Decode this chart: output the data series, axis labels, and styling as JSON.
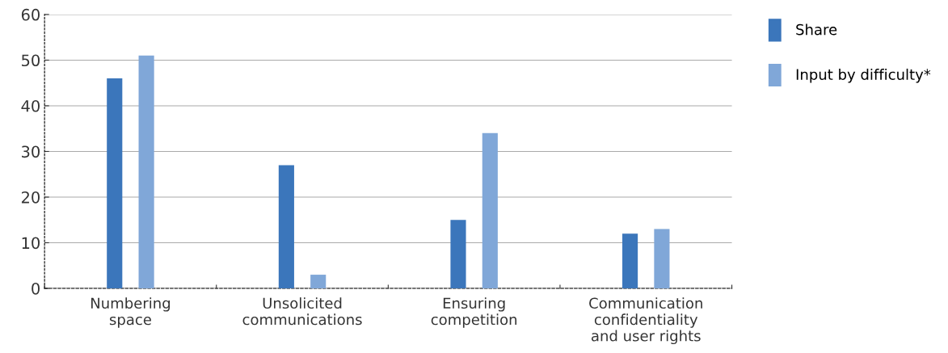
{
  "chart_data": {
    "type": "bar",
    "categories": [
      "Numbering\nspace",
      "Unsolicited\ncommunications",
      "Ensuring\ncompetition",
      "Communication\nconfidentiality\nand user rights"
    ],
    "series": [
      {
        "name": "Share",
        "color": "#3b76bb",
        "values": [
          46,
          27,
          15,
          12
        ]
      },
      {
        "name": "Input by difficulty*",
        "color": "#80a7d8",
        "values": [
          51,
          3,
          34,
          13
        ]
      }
    ],
    "ylim": [
      0,
      60
    ],
    "yticks": [
      0,
      10,
      20,
      30,
      40,
      50,
      60
    ],
    "grid": "y",
    "legend": "top right"
  }
}
